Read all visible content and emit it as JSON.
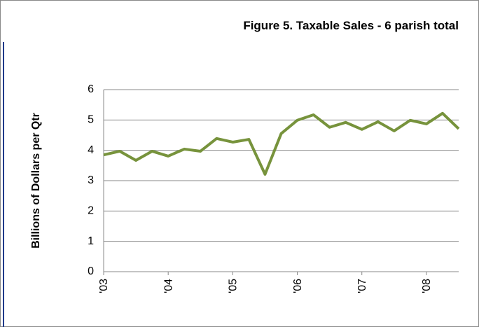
{
  "chart_data": {
    "type": "line",
    "title": "Figure 5. Taxable Sales - 6 parish total",
    "y_label": "Billions of Dollars per Qtr",
    "categories": [
      "'03",
      null,
      null,
      null,
      "'04",
      null,
      null,
      null,
      "'05",
      null,
      null,
      null,
      "'06",
      null,
      null,
      null,
      "'07",
      null,
      null,
      null,
      "'08",
      null,
      null
    ],
    "series": [
      {
        "name": "Taxable Sales",
        "color": "#77933c",
        "values": [
          3.85,
          3.97,
          3.67,
          3.97,
          3.81,
          4.04,
          3.97,
          4.39,
          4.27,
          4.36,
          3.21,
          4.55,
          4.99,
          5.17,
          4.76,
          4.92,
          4.69,
          4.94,
          4.64,
          4.99,
          4.87,
          5.22,
          4.71
        ]
      }
    ],
    "ylim": [
      0,
      6
    ],
    "yticks": [
      0,
      1,
      2,
      3,
      4,
      5,
      6
    ],
    "grid": true
  }
}
